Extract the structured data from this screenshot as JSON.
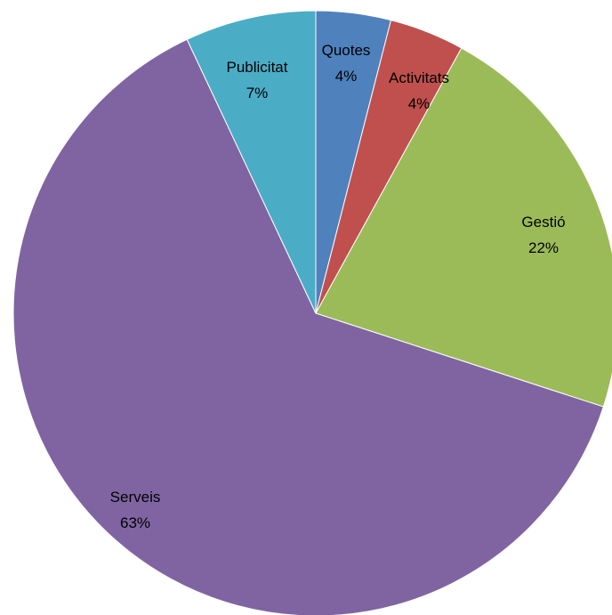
{
  "chart_data": {
    "type": "pie",
    "title": "",
    "start_angle_deg": 0,
    "direction": "clockwise",
    "slices": [
      {
        "name": "Quotes",
        "value": 4,
        "label": "4%",
        "color": "#4F81BD"
      },
      {
        "name": "Activitats",
        "value": 4,
        "label": "4%",
        "color": "#C0504D"
      },
      {
        "name": "Gestió",
        "value": 22,
        "label": "22%",
        "color": "#9BBB59"
      },
      {
        "name": "Serveis",
        "value": 63,
        "label": "63%",
        "color": "#8064A2"
      },
      {
        "name": "Publicitat",
        "value": 7,
        "label": "7%",
        "color": "#4BACC6"
      }
    ]
  }
}
